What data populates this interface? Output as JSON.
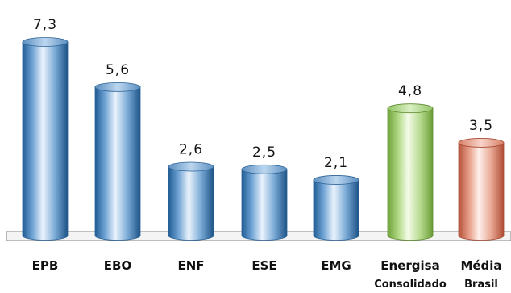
{
  "chart_data": {
    "type": "bar",
    "title": "",
    "xlabel": "",
    "ylabel": "",
    "categories": [
      "EPB",
      "EBO",
      "ENF",
      "ESE",
      "EMG",
      "Energisa",
      "Média"
    ],
    "category_sublabels": [
      "",
      "",
      "",
      "",
      "",
      "Consolidado",
      "Brasil"
    ],
    "values": [
      7.3,
      5.6,
      2.6,
      2.5,
      2.1,
      4.8,
      3.5
    ],
    "value_labels": [
      "7,3",
      "5,6",
      "2,6",
      "2,5",
      "2,1",
      "4,8",
      "3,5"
    ],
    "ylim": [
      0,
      7.3
    ],
    "grid": false,
    "bar_colors": {
      "default": "#9cc3e6",
      "Energisa": "#bfe39a",
      "Média": "#f2b5a3"
    },
    "style": "3d-cylinder"
  }
}
